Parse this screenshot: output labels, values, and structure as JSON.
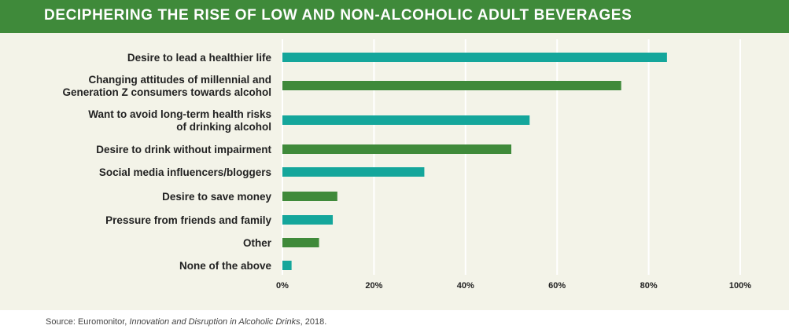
{
  "header": {
    "title": "DECIPHERING THE RISE OF LOW AND NON-ALCOHOLIC ADULT BEVERAGES"
  },
  "footer": {
    "source_prefix": "Source: Euromonitor, ",
    "source_title": "Innovation and Disruption in Alcoholic Drinks",
    "source_suffix": ", 2018."
  },
  "colors": {
    "header_bg": "#3f8a3a",
    "panel_bg": "#f3f3e8",
    "teal": "#14a69b",
    "green": "#3f8a3a",
    "grid": "#ffffff"
  },
  "chart_data": {
    "type": "bar",
    "orientation": "horizontal",
    "title": "",
    "xlabel": "",
    "ylabel": "",
    "xlim": [
      0,
      100
    ],
    "grid": true,
    "legend": "none",
    "ticks": [
      "0%",
      "20%",
      "40%",
      "60%",
      "80%",
      "100%"
    ],
    "tick_values": [
      0,
      20,
      40,
      60,
      80,
      100
    ],
    "categories": [
      [
        "Desire to lead a healthier life"
      ],
      [
        "Changing attitudes of millennial and",
        "Generation Z consumers towards alcohol"
      ],
      [
        "Want to avoid long-term health risks",
        "of drinking alcohol"
      ],
      [
        "Desire to drink without impairment"
      ],
      [
        "Social media influencers/bloggers"
      ],
      [
        "Desire to save money"
      ],
      [
        "Pressure from friends and family"
      ],
      [
        "Other"
      ],
      [
        "None of the above"
      ]
    ],
    "values": [
      84,
      74,
      54,
      50,
      31,
      12,
      11,
      8,
      2
    ],
    "bar_colors": [
      "teal",
      "green",
      "teal",
      "green",
      "teal",
      "green",
      "teal",
      "green",
      "teal"
    ]
  }
}
